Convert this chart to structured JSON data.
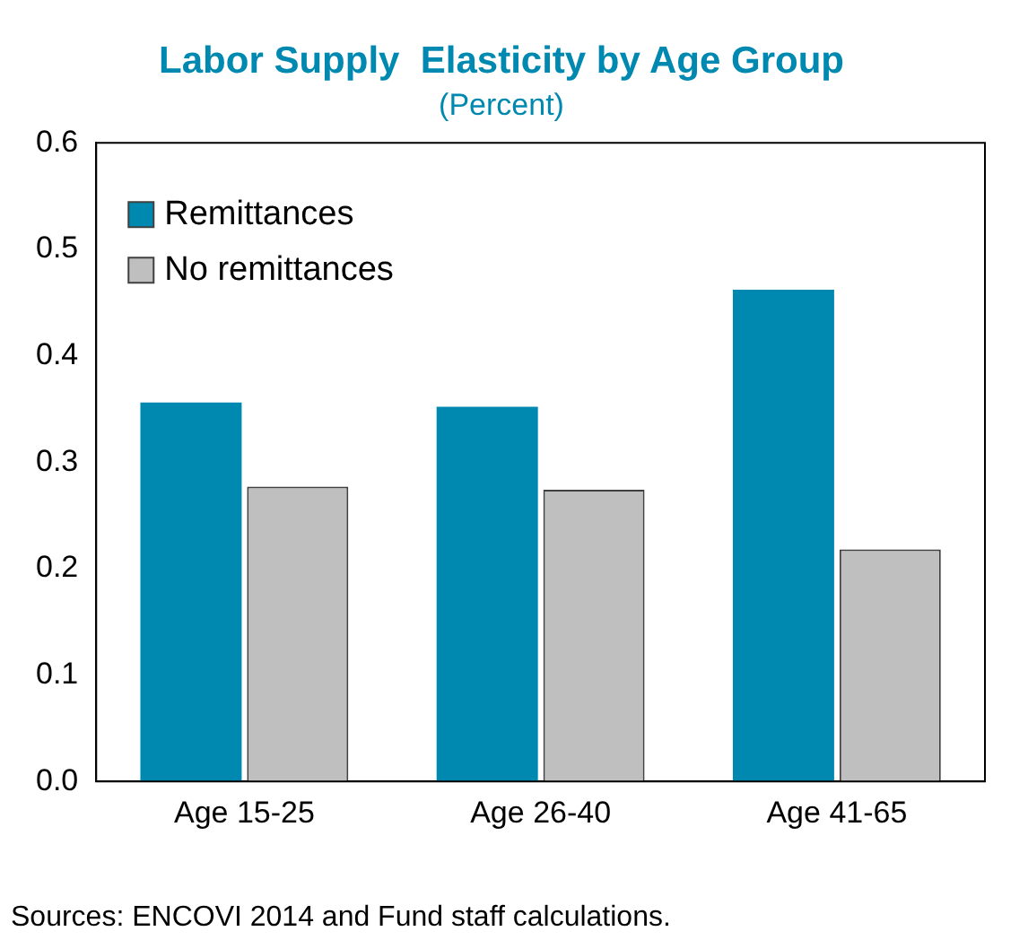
{
  "chart_data": {
    "type": "bar",
    "title": "Labor Supply  Elasticity by Age Group",
    "subtitle": "(Percent)",
    "categories": [
      "Age 15-25",
      "Age 26-40",
      "Age 41-65"
    ],
    "series": [
      {
        "name": "Remittances",
        "color": "#0089b0",
        "values": [
          0.356,
          0.352,
          0.462
        ]
      },
      {
        "name": "No remittances",
        "color": "#bfbfbf",
        "values": [
          0.277,
          0.274,
          0.218
        ]
      }
    ],
    "ylim": [
      0,
      0.6
    ],
    "yticks": [
      {
        "value": 0,
        "label": "0.0"
      },
      0.1,
      0.2,
      0.3,
      0.4,
      0.5,
      0.6
    ],
    "grid": false,
    "legend": "top left",
    "annotations": [
      "Sources: ENCOVI 2014 and Fund staff calculations."
    ]
  }
}
